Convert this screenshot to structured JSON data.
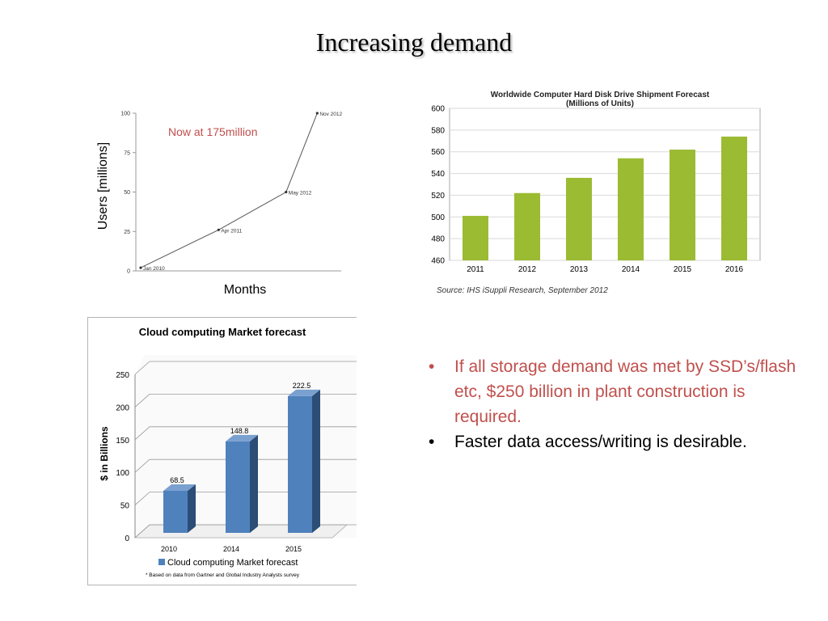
{
  "slide": {
    "title": "Increasing demand",
    "bullets": [
      {
        "text": "If all storage demand was met by SSD’s/flash etc, $250 billion in plant construction is required.",
        "color": "#c0504d"
      },
      {
        "text": "Faster data access/writing is desirable.",
        "color": "#000000"
      }
    ]
  },
  "chart_data": [
    {
      "type": "line",
      "title": "",
      "annotation": "Now at 175million",
      "xlabel": "Months",
      "ylabel": "Users [millions]",
      "ylim": [
        0,
        100
      ],
      "yticks": [
        "0",
        "25",
        "50",
        "75",
        "100"
      ],
      "x": [
        "Jan 2010",
        "Apr 2011",
        "May 2012",
        "Nov 2012"
      ],
      "values": [
        2,
        26,
        50,
        100
      ],
      "grid": false,
      "line_color": "#555555",
      "annotation_color": "#c0504d"
    },
    {
      "type": "bar",
      "title": "Worldwide Computer Hard Disk Drive Shipment Forecast",
      "subtitle": "(Millions of Units)",
      "source": "Source: IHS iSuppli Research, September 2012",
      "categories": [
        "2011",
        "2012",
        "2013",
        "2014",
        "2015",
        "2016"
      ],
      "values": [
        501,
        522,
        536,
        554,
        562,
        574
      ],
      "ylim": [
        460,
        600
      ],
      "yticks": [
        "460",
        "480",
        "500",
        "520",
        "540",
        "560",
        "580",
        "600"
      ],
      "grid": true,
      "bar_color": "#9bbb32"
    },
    {
      "type": "bar",
      "title": "Cloud computing  Market  forecast",
      "ylabel": "$ in Billions",
      "categories": [
        "2010",
        "2014",
        "2015"
      ],
      "values": [
        68.5,
        148.8,
        222.5
      ],
      "data_labels": [
        "68.5",
        "148.8",
        "222.5"
      ],
      "ylim": [
        0,
        250
      ],
      "yticks": [
        "0",
        "50",
        "100",
        "150",
        "200",
        "250"
      ],
      "legend": "Cloud computing Market forecast",
      "legend_position": "bottom",
      "footnote": "* Based on data from Gartner and Global Industry Analysts survey",
      "bar_color": "#4f81bd",
      "grid": true
    }
  ]
}
